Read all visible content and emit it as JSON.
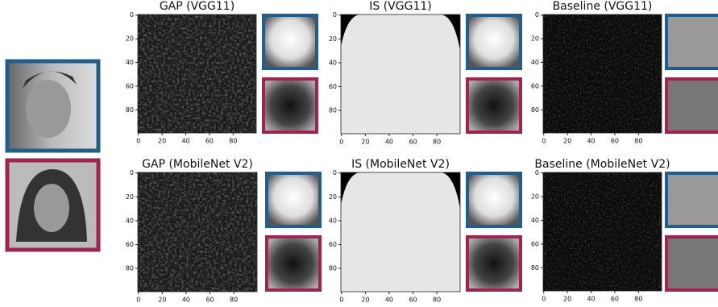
{
  "panels": [
    {
      "title": "GAP (VGG11)",
      "xticks": [
        "0",
        "20",
        "40",
        "60",
        "80"
      ],
      "yticks": [
        "0",
        "20",
        "40",
        "60",
        "80"
      ]
    },
    {
      "title": "IS (VGG11)",
      "xticks": [
        "0",
        "20",
        "40",
        "60",
        "80"
      ],
      "yticks": [
        "0",
        "20",
        "40",
        "60",
        "80"
      ]
    },
    {
      "title": "Baseline (VGG11)",
      "xticks": [
        "0",
        "20",
        "40",
        "60",
        "80"
      ],
      "yticks": [
        "0",
        "20",
        "40",
        "60",
        "80"
      ]
    },
    {
      "title": "GAP (MobileNet V2)",
      "xticks": [
        "0",
        "20",
        "40",
        "60",
        "80"
      ],
      "yticks": [
        "0",
        "20",
        "40",
        "60",
        "80"
      ]
    },
    {
      "title": "IS (MobileNet V2)",
      "xticks": [
        "0",
        "20",
        "40",
        "60",
        "80"
      ],
      "yticks": [
        "0",
        "20",
        "40",
        "60",
        "80"
      ]
    },
    {
      "title": "Baseline (MobileNet V2)",
      "xticks": [
        "0",
        "20",
        "40",
        "60",
        "80"
      ],
      "yticks": [
        "0",
        "20",
        "40",
        "60",
        "80"
      ]
    }
  ]
}
